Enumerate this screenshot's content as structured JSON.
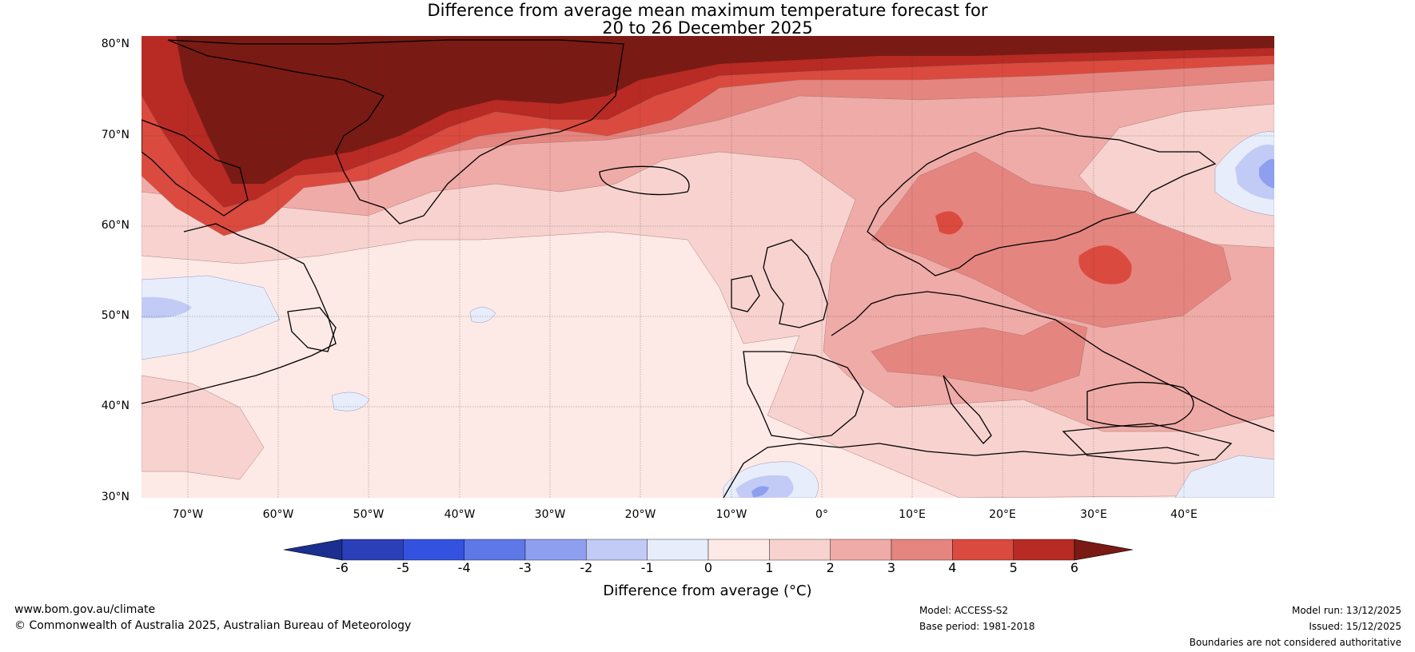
{
  "title": {
    "line1": "Difference from average mean maximum temperature forecast for",
    "line2": "20 to 26 December 2025"
  },
  "map": {
    "lat_labels": [
      "80°N",
      "70°N",
      "60°N",
      "50°N",
      "40°N",
      "30°N"
    ],
    "lon_labels": [
      "70°W",
      "60°W",
      "50°W",
      "40°W",
      "30°W",
      "20°W",
      "10°W",
      "0°",
      "10°E",
      "20°E",
      "30°E",
      "40°E"
    ],
    "extent": {
      "lon_min": -75,
      "lon_max": 50,
      "lat_min": 30,
      "lat_max": 81
    }
  },
  "colorbar": {
    "title": "Difference from average (°C)",
    "tick_labels": [
      "-6",
      "-5",
      "-4",
      "-3",
      "-2",
      "-1",
      "0",
      "1",
      "2",
      "3",
      "4",
      "5",
      "6"
    ],
    "colors": [
      "#1a2f8f",
      "#2a3fb8",
      "#3452e0",
      "#5e78e8",
      "#8e9ff0",
      "#c2cbf5",
      "#e8edfc",
      "#fde9e6",
      "#f7d2cf",
      "#efaba7",
      "#e58580",
      "#db4a3e",
      "#b82a24",
      "#7a1a14"
    ]
  },
  "footer": {
    "website": "www.bom.gov.au/climate",
    "copyright": "© Commonwealth of Australia 2025, Australian Bureau of Meteorology",
    "model": "Model: ACCESS-S2",
    "base_period": "Base period: 1981-2018",
    "model_run": "Model run: 13/12/2025",
    "issued": "Issued: 15/12/2025",
    "disclaimer": "Boundaries are not considered authoritative"
  }
}
